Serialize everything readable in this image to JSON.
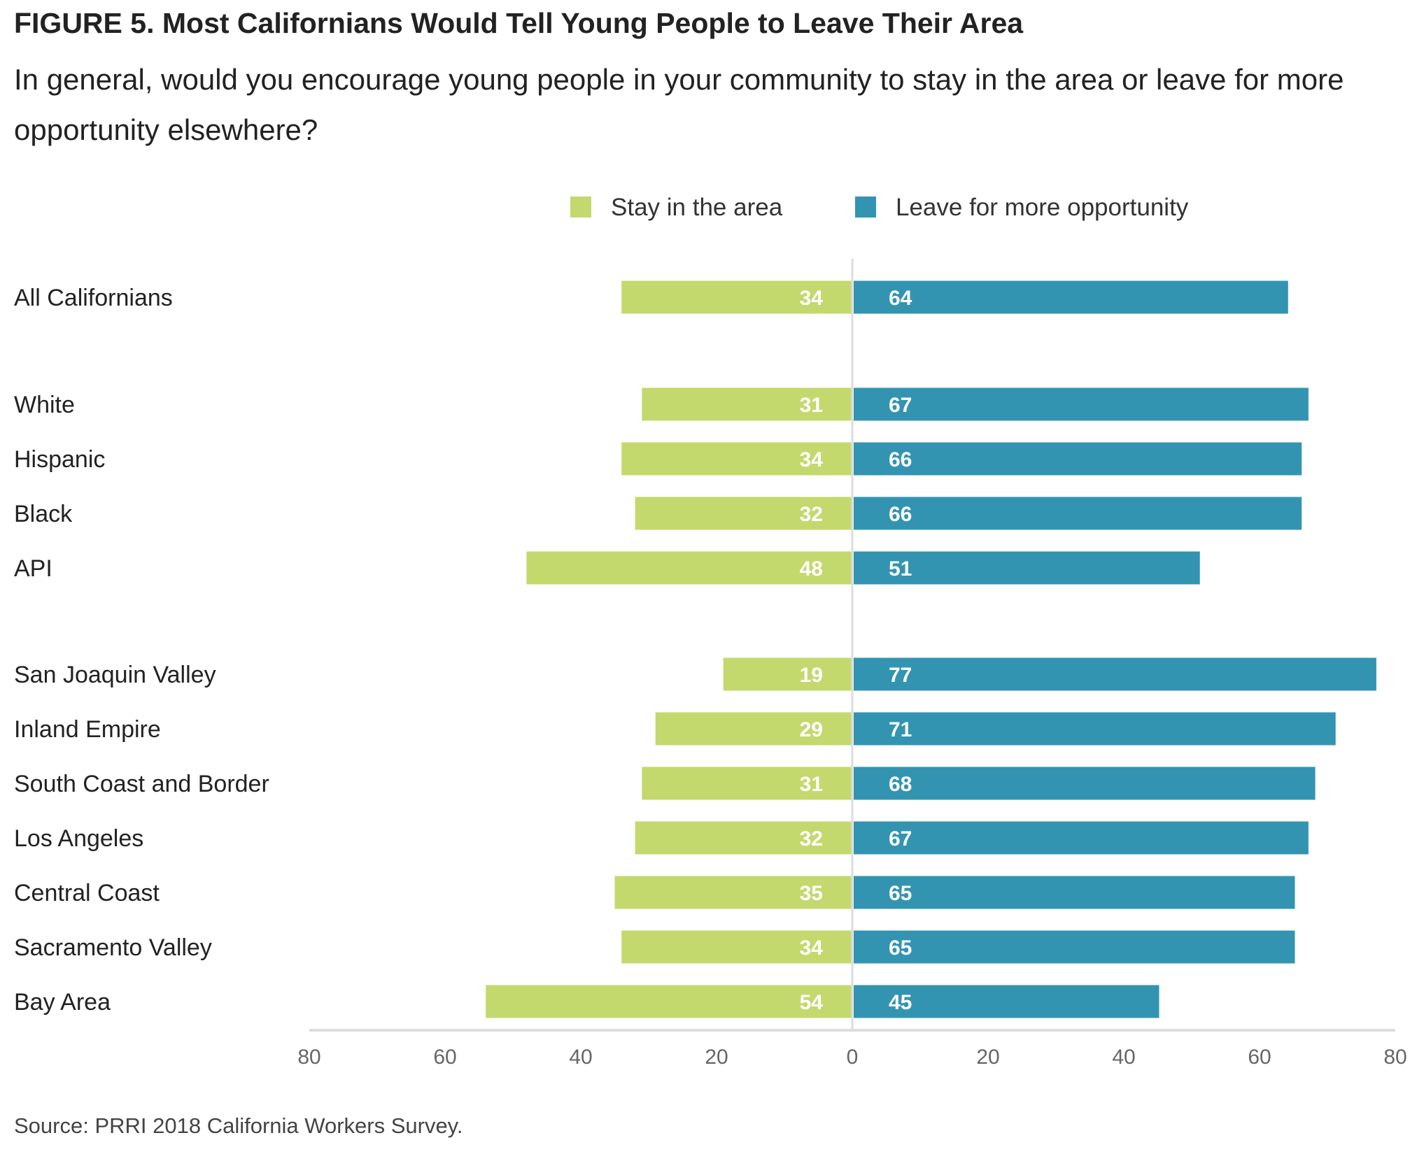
{
  "chart_data": {
    "type": "bar",
    "orientation": "horizontal-diverging",
    "title": "FIGURE 5. Most Californians Would Tell Young People to Leave Their Area",
    "subtitle": "In general, would you encourage young people in your community to stay in the area or leave for more opportunity elsewhere?",
    "categories": [
      "All Californians",
      "White",
      "Hispanic",
      "Black",
      "API",
      "San Joaquin Valley",
      "Inland Empire",
      "South Coast and Border",
      "Los Angeles",
      "Central Coast",
      "Sacramento Valley",
      "Bay Area"
    ],
    "groups": [
      [
        0
      ],
      [
        1,
        2,
        3,
        4
      ],
      [
        5,
        6,
        7,
        8,
        9,
        10,
        11
      ]
    ],
    "series": [
      {
        "name": "Stay in the area",
        "color": "#c3d96e",
        "direction": "left",
        "values": [
          34,
          31,
          34,
          32,
          48,
          19,
          29,
          31,
          32,
          35,
          34,
          54
        ]
      },
      {
        "name": "Leave for more opportunity",
        "color": "#3394b2",
        "direction": "right",
        "values": [
          64,
          67,
          66,
          66,
          51,
          77,
          71,
          68,
          67,
          65,
          65,
          45
        ]
      }
    ],
    "xlim": [
      -80,
      80
    ],
    "xticks": [
      -80,
      -60,
      -40,
      -20,
      0,
      20,
      40,
      60,
      80
    ],
    "xtick_labels": [
      "80",
      "60",
      "40",
      "20",
      "0",
      "20",
      "40",
      "60",
      "80"
    ],
    "legend_position": "top-center",
    "grid": false
  },
  "source": "Source: PRRI 2018 California Workers Survey."
}
